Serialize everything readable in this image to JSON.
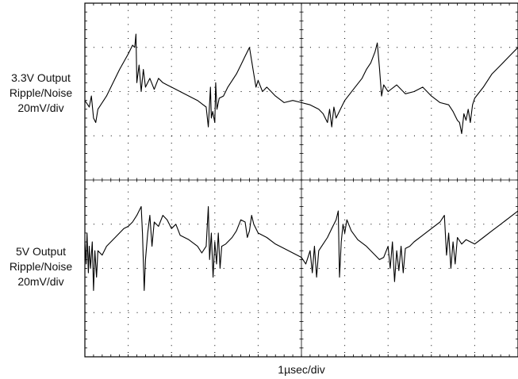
{
  "labels": {
    "ch1": [
      "3.3V Output",
      "Ripple/Noise",
      "20mV/div"
    ],
    "ch2": [
      "5V Output",
      "Ripple/Noise",
      "20mV/div"
    ],
    "xscale": "1µsec/div"
  },
  "colors": {
    "trace": "#000000",
    "frame": "#000000",
    "grid": "#000000"
  },
  "chart_data": {
    "type": "line",
    "grid": true,
    "x_divisions": 10,
    "y_divisions": 8,
    "xlim": [
      0,
      10
    ],
    "ylim": [
      -4,
      4
    ],
    "x_unit_label": "1µsec/div",
    "series": [
      {
        "name": "3.3V Output Ripple/Noise",
        "y_scale_label": "20mV/div",
        "points": [
          [
            0,
            1.8
          ],
          [
            0.1,
            1.65
          ],
          [
            0.15,
            1.9
          ],
          [
            0.2,
            1.4
          ],
          [
            0.25,
            1.3
          ],
          [
            0.3,
            1.6
          ],
          [
            0.5,
            1.9
          ],
          [
            0.6,
            2.1
          ],
          [
            0.8,
            2.5
          ],
          [
            1.0,
            2.85
          ],
          [
            1.1,
            3.05
          ],
          [
            1.15,
            3.0
          ],
          [
            1.18,
            3.3
          ],
          [
            1.2,
            2.2
          ],
          [
            1.25,
            2.6
          ],
          [
            1.3,
            2.0
          ],
          [
            1.35,
            2.5
          ],
          [
            1.4,
            2.1
          ],
          [
            1.5,
            2.3
          ],
          [
            1.6,
            2.05
          ],
          [
            1.7,
            2.3
          ],
          [
            1.8,
            2.2
          ],
          [
            1.9,
            2.15
          ],
          [
            2.0,
            2.1
          ],
          [
            2.2,
            2.0
          ],
          [
            2.4,
            1.9
          ],
          [
            2.6,
            1.8
          ],
          [
            2.8,
            1.65
          ],
          [
            2.85,
            1.2
          ],
          [
            2.9,
            2.1
          ],
          [
            2.92,
            1.4
          ],
          [
            2.95,
            1.55
          ],
          [
            3.0,
            1.3
          ],
          [
            3.02,
            2.2
          ],
          [
            3.05,
            1.6
          ],
          [
            3.1,
            1.85
          ],
          [
            3.2,
            1.9
          ],
          [
            3.3,
            2.1
          ],
          [
            3.5,
            2.4
          ],
          [
            3.6,
            2.6
          ],
          [
            3.7,
            2.8
          ],
          [
            3.8,
            3.0
          ],
          [
            3.85,
            2.7
          ],
          [
            3.9,
            2.4
          ],
          [
            3.95,
            2.1
          ],
          [
            4.0,
            2.25
          ],
          [
            4.1,
            2.0
          ],
          [
            4.2,
            2.1
          ],
          [
            4.3,
            2.0
          ],
          [
            4.4,
            1.9
          ],
          [
            4.6,
            1.75
          ],
          [
            4.8,
            1.8
          ],
          [
            5.0,
            1.75
          ],
          [
            5.2,
            1.7
          ],
          [
            5.4,
            1.6
          ],
          [
            5.5,
            1.5
          ],
          [
            5.6,
            1.3
          ],
          [
            5.65,
            1.6
          ],
          [
            5.7,
            1.2
          ],
          [
            5.75,
            1.65
          ],
          [
            5.8,
            1.4
          ],
          [
            5.9,
            1.6
          ],
          [
            6.0,
            1.8
          ],
          [
            6.2,
            2.05
          ],
          [
            6.4,
            2.3
          ],
          [
            6.5,
            2.5
          ],
          [
            6.6,
            2.65
          ],
          [
            6.7,
            2.9
          ],
          [
            6.75,
            3.1
          ],
          [
            6.8,
            2.55
          ],
          [
            6.85,
            1.9
          ],
          [
            6.9,
            2.15
          ],
          [
            7.0,
            2.0
          ],
          [
            7.2,
            2.15
          ],
          [
            7.4,
            1.95
          ],
          [
            7.6,
            2.0
          ],
          [
            7.8,
            2.1
          ],
          [
            8.0,
            1.9
          ],
          [
            8.2,
            1.75
          ],
          [
            8.4,
            1.7
          ],
          [
            8.5,
            1.55
          ],
          [
            8.6,
            1.35
          ],
          [
            8.65,
            1.3
          ],
          [
            8.7,
            1.05
          ],
          [
            8.75,
            1.5
          ],
          [
            8.8,
            1.35
          ],
          [
            8.85,
            1.6
          ],
          [
            8.9,
            1.3
          ],
          [
            8.95,
            1.7
          ],
          [
            9.0,
            1.85
          ],
          [
            9.2,
            2.1
          ],
          [
            9.4,
            2.4
          ],
          [
            9.6,
            2.6
          ],
          [
            9.8,
            2.8
          ],
          [
            10,
            3.0
          ]
        ]
      },
      {
        "name": "5V Output Ripple/Noise",
        "y_scale_label": "20mV/div",
        "points": [
          [
            0,
            -1.4
          ],
          [
            0.03,
            -1.9
          ],
          [
            0.05,
            -1.2
          ],
          [
            0.08,
            -2.1
          ],
          [
            0.1,
            -1.5
          ],
          [
            0.13,
            -2.0
          ],
          [
            0.17,
            -1.4
          ],
          [
            0.2,
            -2.5
          ],
          [
            0.23,
            -1.6
          ],
          [
            0.27,
            -2.2
          ],
          [
            0.3,
            -1.6
          ],
          [
            0.4,
            -1.7
          ],
          [
            0.5,
            -1.5
          ],
          [
            0.7,
            -1.3
          ],
          [
            0.9,
            -1.1
          ],
          [
            1.0,
            -1.05
          ],
          [
            1.1,
            -0.95
          ],
          [
            1.2,
            -0.8
          ],
          [
            1.3,
            -0.6
          ],
          [
            1.33,
            -1.2
          ],
          [
            1.37,
            -2.5
          ],
          [
            1.4,
            -1.8
          ],
          [
            1.45,
            -1.2
          ],
          [
            1.5,
            -0.8
          ],
          [
            1.55,
            -1.5
          ],
          [
            1.6,
            -0.95
          ],
          [
            1.7,
            -1.05
          ],
          [
            1.8,
            -0.8
          ],
          [
            1.9,
            -0.9
          ],
          [
            2.0,
            -1.1
          ],
          [
            2.1,
            -1.0
          ],
          [
            2.2,
            -1.25
          ],
          [
            2.4,
            -1.35
          ],
          [
            2.6,
            -1.5
          ],
          [
            2.7,
            -1.65
          ],
          [
            2.8,
            -1.5
          ],
          [
            2.85,
            -0.6
          ],
          [
            2.88,
            -1.8
          ],
          [
            2.92,
            -1.2
          ],
          [
            2.96,
            -2.2
          ],
          [
            3.0,
            -1.4
          ],
          [
            3.04,
            -1.9
          ],
          [
            3.08,
            -1.2
          ],
          [
            3.12,
            -2.0
          ],
          [
            3.16,
            -1.5
          ],
          [
            3.25,
            -1.45
          ],
          [
            3.4,
            -1.3
          ],
          [
            3.5,
            -1.15
          ],
          [
            3.6,
            -0.9
          ],
          [
            3.7,
            -0.95
          ],
          [
            3.75,
            -1.3
          ],
          [
            3.8,
            -1.15
          ],
          [
            3.85,
            -0.8
          ],
          [
            3.9,
            -1.0
          ],
          [
            4.0,
            -1.2
          ],
          [
            4.2,
            -1.3
          ],
          [
            4.4,
            -1.45
          ],
          [
            4.6,
            -1.55
          ],
          [
            4.8,
            -1.65
          ],
          [
            5.0,
            -1.75
          ],
          [
            5.1,
            -1.9
          ],
          [
            5.2,
            -1.6
          ],
          [
            5.25,
            -2.1
          ],
          [
            5.3,
            -1.5
          ],
          [
            5.35,
            -2.2
          ],
          [
            5.4,
            -1.6
          ],
          [
            5.5,
            -1.45
          ],
          [
            5.6,
            -1.3
          ],
          [
            5.7,
            -1.1
          ],
          [
            5.8,
            -0.9
          ],
          [
            5.85,
            -0.7
          ],
          [
            5.88,
            -2.2
          ],
          [
            5.92,
            -1.4
          ],
          [
            5.96,
            -1.0
          ],
          [
            6.0,
            -1.2
          ],
          [
            6.05,
            -0.9
          ],
          [
            6.15,
            -1.15
          ],
          [
            6.3,
            -1.35
          ],
          [
            6.5,
            -1.5
          ],
          [
            6.7,
            -1.7
          ],
          [
            6.8,
            -1.8
          ],
          [
            6.9,
            -1.75
          ],
          [
            7.0,
            -1.5
          ],
          [
            7.05,
            -2.0
          ],
          [
            7.1,
            -1.4
          ],
          [
            7.15,
            -2.3
          ],
          [
            7.2,
            -1.6
          ],
          [
            7.25,
            -2.05
          ],
          [
            7.3,
            -1.5
          ],
          [
            7.35,
            -2.1
          ],
          [
            7.4,
            -1.55
          ],
          [
            7.5,
            -1.5
          ],
          [
            7.6,
            -1.4
          ],
          [
            7.8,
            -1.25
          ],
          [
            8.0,
            -1.1
          ],
          [
            8.2,
            -0.95
          ],
          [
            8.3,
            -0.8
          ],
          [
            8.35,
            -1.7
          ],
          [
            8.4,
            -1.2
          ],
          [
            8.45,
            -2.0
          ],
          [
            8.5,
            -1.4
          ],
          [
            8.55,
            -1.9
          ],
          [
            8.6,
            -1.3
          ],
          [
            8.7,
            -1.45
          ],
          [
            8.8,
            -1.35
          ],
          [
            9.0,
            -1.45
          ],
          [
            9.2,
            -1.3
          ],
          [
            9.4,
            -1.15
          ],
          [
            9.6,
            -1.0
          ],
          [
            9.8,
            -0.85
          ],
          [
            10,
            -0.7
          ]
        ]
      }
    ]
  }
}
